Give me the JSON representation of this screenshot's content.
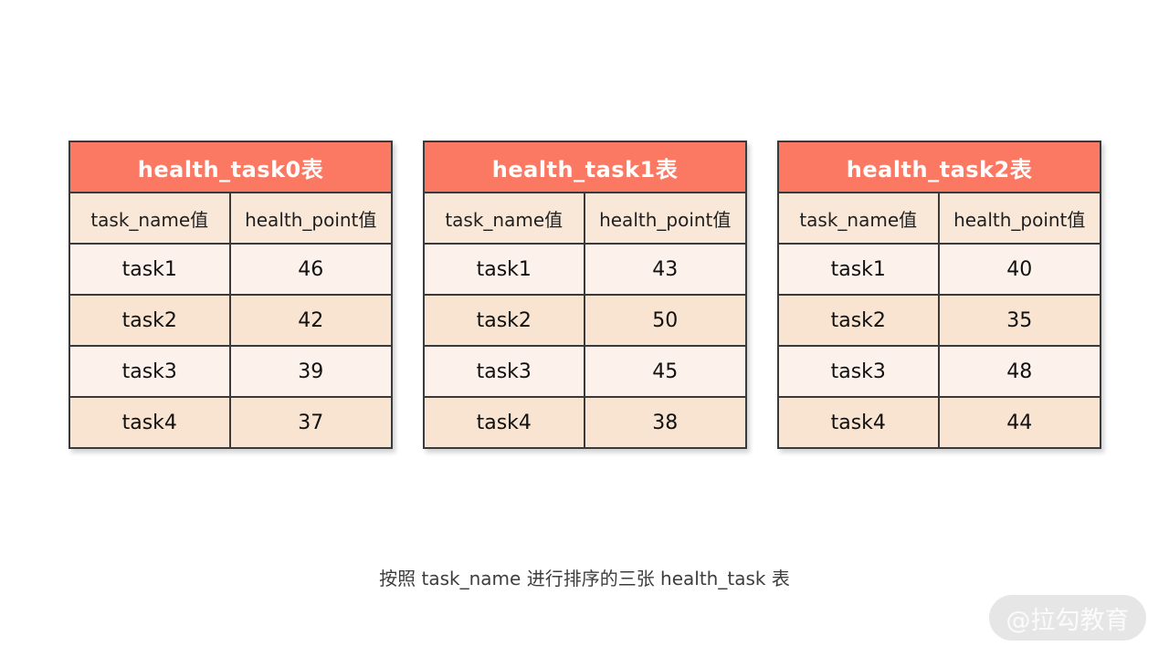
{
  "page": {
    "caption": "按照 task_name 进行排序的三张 health_task 表",
    "watermark": "@拉勾教育"
  },
  "colors": {
    "table_header_bg": "#fb7963",
    "table_header_text": "#ffffff",
    "column_header_bg": "#f9e7d8",
    "row_odd_bg": "#fcf2eb",
    "row_even_bg": "#f9e3d1",
    "border": "#3a3a3a",
    "caption_text": "#3d3d3d",
    "watermark_bg": "#e6e6e6",
    "watermark_text": "#fbfbfb"
  },
  "chart_data": [
    {
      "type": "table",
      "title": "health_task0表",
      "columns": [
        "task_name值",
        "health_point值"
      ],
      "rows": [
        [
          "task1",
          46
        ],
        [
          "task2",
          42
        ],
        [
          "task3",
          39
        ],
        [
          "task4",
          37
        ]
      ]
    },
    {
      "type": "table",
      "title": "health_task1表",
      "columns": [
        "task_name值",
        "health_point值"
      ],
      "rows": [
        [
          "task1",
          43
        ],
        [
          "task2",
          50
        ],
        [
          "task3",
          45
        ],
        [
          "task4",
          38
        ]
      ]
    },
    {
      "type": "table",
      "title": "health_task2表",
      "columns": [
        "task_name值",
        "health_point值"
      ],
      "rows": [
        [
          "task1",
          40
        ],
        [
          "task2",
          35
        ],
        [
          "task3",
          48
        ],
        [
          "task4",
          44
        ]
      ]
    }
  ]
}
